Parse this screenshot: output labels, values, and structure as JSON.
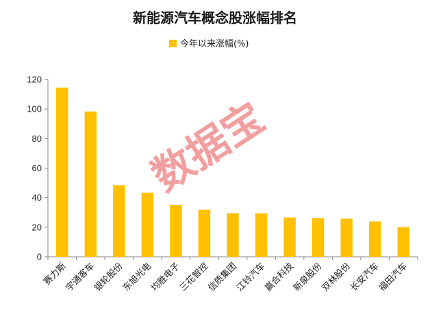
{
  "chart_data": {
    "type": "bar",
    "title": "新能源汽车概念股涨幅排名",
    "legend": {
      "label": "今年以来涨幅(%)",
      "position": "top"
    },
    "categories": [
      "赛力斯",
      "宇通客车",
      "银轮股份",
      "东旭光电",
      "均胜电子",
      "三花智控",
      "信质集团",
      "江铃汽车",
      "赢合科技",
      "新泉股份",
      "双林股份",
      "长安汽车",
      "福田汽车"
    ],
    "values": [
      114.5,
      98.3,
      48.5,
      43.3,
      35.2,
      31.8,
      29.5,
      29.4,
      26.6,
      26.2,
      25.8,
      23.9,
      20.0
    ],
    "ylim": [
      0,
      120
    ],
    "yticks": [
      0,
      20,
      40,
      60,
      80,
      100,
      120
    ],
    "grid": false,
    "colors": {
      "bar": "#FFC000",
      "axis": "#868686"
    }
  },
  "watermark": "数据宝"
}
